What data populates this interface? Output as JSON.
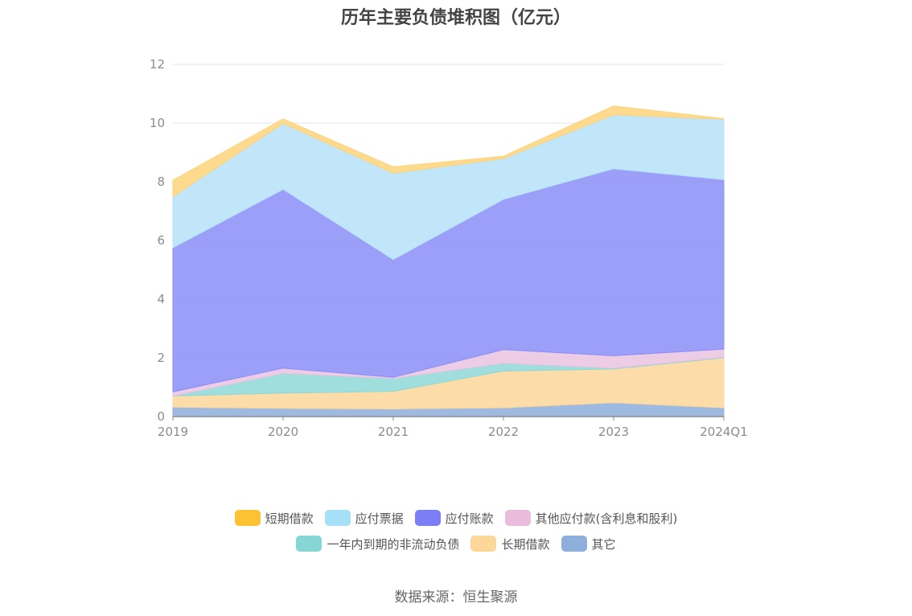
{
  "title": "历年主要负债堆积图（亿元）",
  "source": "数据来源：恒生聚源",
  "chart_data": {
    "type": "area",
    "stacked": true,
    "categories": [
      "2019",
      "2020",
      "2021",
      "2022",
      "2023",
      "2024Q1"
    ],
    "ylim": [
      0,
      12
    ],
    "yticks": [
      0,
      2,
      4,
      6,
      8,
      10,
      12
    ],
    "grid": true,
    "legend_position": "bottom",
    "series": [
      {
        "name": "其它",
        "color": "#8eaedc",
        "values": [
          0.32,
          0.28,
          0.26,
          0.3,
          0.47,
          0.3
        ]
      },
      {
        "name": "长期借款",
        "color": "#fcd79a",
        "values": [
          0.38,
          0.52,
          0.6,
          1.25,
          1.15,
          1.7
        ]
      },
      {
        "name": "一年内到期的非流动负债",
        "color": "#8fd8d8",
        "values": [
          0.0,
          0.67,
          0.44,
          0.27,
          0.03,
          0.02
        ]
      },
      {
        "name": "其他应付款(含利息和股利)",
        "color": "#eac3e0",
        "values": [
          0.14,
          0.18,
          0.04,
          0.46,
          0.42,
          0.28
        ]
      },
      {
        "name": "应付账款",
        "color": "#8a8ef7",
        "values": [
          4.91,
          6.09,
          4.01,
          5.12,
          6.37,
          5.77
        ]
      },
      {
        "name": "应付票据",
        "color": "#b6e2f8",
        "values": [
          1.74,
          2.25,
          2.94,
          1.39,
          1.84,
          2.06
        ]
      },
      {
        "name": "短期借款",
        "color": "#fdd37a",
        "values": [
          0.56,
          0.15,
          0.22,
          0.08,
          0.3,
          0.02
        ]
      }
    ],
    "legend": [
      [
        {
          "name": "短期借款",
          "color": "#fcc233"
        },
        {
          "name": "应付票据",
          "color": "#a6dff8"
        },
        {
          "name": "应付账款",
          "color": "#7b7ef4"
        },
        {
          "name": "其他应付款(含利息和股利)",
          "color": "#e9bcdc"
        }
      ],
      [
        {
          "name": "一年内到期的非流动负债",
          "color": "#86d6d6"
        },
        {
          "name": "长期借款",
          "color": "#fdd79a"
        },
        {
          "name": "其它",
          "color": "#8eaedc"
        }
      ]
    ]
  }
}
